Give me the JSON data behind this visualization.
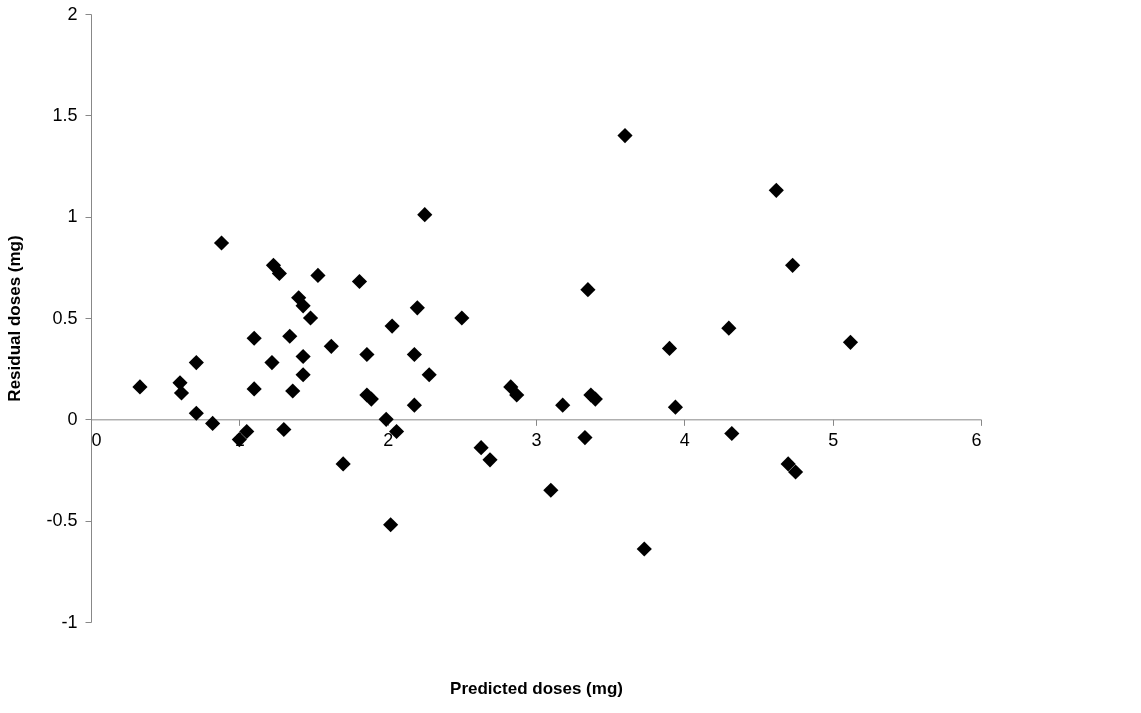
{
  "chart_data": {
    "type": "scatter",
    "xlabel": "Predicted doses (mg)",
    "ylabel": "Residual doses (mg)",
    "xlim": [
      0,
      6
    ],
    "xticks": [
      0,
      1,
      2,
      3,
      4,
      5,
      6
    ],
    "ylim": [
      -1,
      2
    ],
    "yticks": [
      -1,
      -0.5,
      0,
      0.5,
      1,
      1.5,
      2
    ],
    "grid": false,
    "legend": false,
    "marker": "diamond",
    "series": [
      {
        "color": "#000000",
        "x": [
          0.33,
          0.6,
          0.61,
          0.71,
          0.71,
          0.82,
          0.88,
          1.0,
          1.05,
          1.1,
          1.1,
          1.22,
          1.23,
          1.27,
          1.3,
          1.34,
          1.36,
          1.4,
          1.43,
          1.43,
          1.43,
          1.48,
          1.53,
          1.62,
          1.7,
          1.81,
          1.86,
          1.86,
          1.89,
          1.99,
          2.02,
          2.03,
          2.06,
          2.18,
          2.18,
          2.2,
          2.25,
          2.28,
          2.5,
          2.63,
          2.69,
          2.83,
          2.87,
          3.1,
          3.18,
          3.33,
          3.35,
          3.37,
          3.4,
          3.6,
          3.73,
          3.9,
          3.94,
          4.3,
          4.32,
          4.62,
          4.7,
          4.73,
          4.75,
          5.12
        ],
        "values": [
          0.16,
          0.18,
          0.13,
          0.28,
          0.03,
          -0.02,
          0.87,
          -0.1,
          -0.06,
          0.4,
          0.15,
          0.28,
          0.76,
          0.72,
          -0.05,
          0.41,
          0.14,
          0.6,
          0.56,
          0.31,
          0.22,
          0.5,
          0.71,
          0.36,
          -0.22,
          0.68,
          0.32,
          0.12,
          0.1,
          0.0,
          -0.52,
          0.46,
          -0.06,
          0.32,
          0.07,
          0.55,
          1.01,
          0.22,
          0.5,
          -0.14,
          -0.2,
          0.16,
          0.12,
          -0.35,
          0.07,
          -0.09,
          0.64,
          0.12,
          0.1,
          1.4,
          -0.64,
          0.35,
          0.06,
          0.45,
          -0.07,
          1.13,
          -0.22,
          0.76,
          -0.26,
          0.38
        ]
      }
    ]
  }
}
